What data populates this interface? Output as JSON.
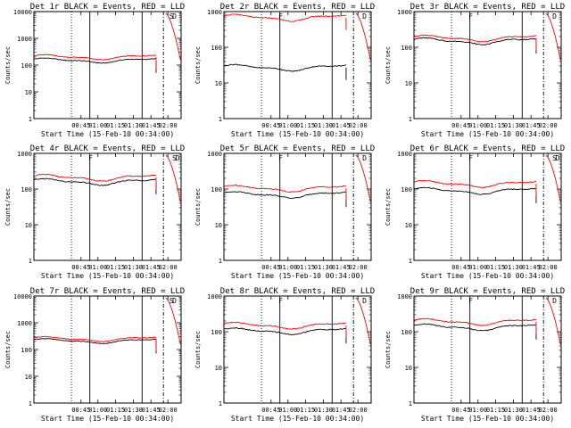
{
  "chart_data": [
    {
      "type": "line",
      "title": "Det 1r BLACK = Events, RED = LLD",
      "xlabel": "Start Time (15-Feb-10 00:34:00)",
      "ylabel": "Counts/sec",
      "yscale": "log",
      "ylim": [
        1,
        10000
      ],
      "x_ticks": [
        "00:45",
        "01:00",
        "01:15",
        "01:30",
        "01:45",
        "02:00"
      ],
      "y_ticks": [
        "1",
        "10",
        "100",
        "1000",
        "10000"
      ],
      "series": [
        {
          "name": "Events",
          "color": "#000000",
          "base": 150
        },
        {
          "name": "LLD",
          "color": "#ff0000",
          "base": 200
        }
      ],
      "flags": [
        "S",
        "D"
      ]
    },
    {
      "type": "line",
      "title": "Det 2r BLACK = Events, RED = LLD",
      "xlabel": "Start Time (15-Feb-10 00:34:00)",
      "ylabel": "Counts/sec",
      "yscale": "log",
      "ylim": [
        1,
        1000
      ],
      "x_ticks": [
        "00:45",
        "01:00",
        "01:15",
        "01:30",
        "01:45",
        "02:00"
      ],
      "y_ticks": [
        "1",
        "10",
        "100",
        "1000"
      ],
      "series": [
        {
          "name": "Events",
          "color": "#000000",
          "base": 27
        },
        {
          "name": "LLD",
          "color": "#ff0000",
          "base": 680
        }
      ],
      "flags": [
        "F",
        "D"
      ]
    },
    {
      "type": "line",
      "title": "Det 3r BLACK = Events, RED = LLD",
      "xlabel": "Start Time (15-Feb-10 00:34:00)",
      "ylabel": "Counts/sec",
      "yscale": "log",
      "ylim": [
        1,
        1000
      ],
      "x_ticks": [
        "00:45",
        "01:00",
        "01:15",
        "01:30",
        "01:45",
        "02:00"
      ],
      "y_ticks": [
        "1",
        "10",
        "100",
        "1000"
      ],
      "series": [
        {
          "name": "Events",
          "color": "#000000",
          "base": 150
        },
        {
          "name": "LLD",
          "color": "#ff0000",
          "base": 180
        }
      ],
      "flags": [
        "F",
        "D"
      ]
    },
    {
      "type": "line",
      "title": "Det 4r BLACK = Events, RED = LLD",
      "xlabel": "Start Time (15-Feb-10 00:34:00)",
      "ylabel": "Counts/sec",
      "yscale": "log",
      "ylim": [
        1,
        1000
      ],
      "x_ticks": [
        "00:45",
        "01:00",
        "01:15",
        "01:30",
        "01:45",
        "02:00"
      ],
      "y_ticks": [
        "1",
        "10",
        "100",
        "1000"
      ],
      "series": [
        {
          "name": "Events",
          "color": "#000000",
          "base": 160
        },
        {
          "name": "LLD",
          "color": "#ff0000",
          "base": 210
        }
      ],
      "flags": [
        "F",
        "S",
        "D"
      ]
    },
    {
      "type": "line",
      "title": "Det 5r BLACK = Events, RED = LLD",
      "xlabel": "Start Time (15-Feb-10 00:34:00)",
      "ylabel": "Counts/sec",
      "yscale": "log",
      "ylim": [
        1,
        1000
      ],
      "x_ticks": [
        "00:45",
        "01:00",
        "01:15",
        "01:30",
        "01:45",
        "02:00"
      ],
      "y_ticks": [
        "1",
        "10",
        "100",
        "1000"
      ],
      "series": [
        {
          "name": "Events",
          "color": "#000000",
          "base": 70
        },
        {
          "name": "LLD",
          "color": "#ff0000",
          "base": 105
        }
      ],
      "flags": [
        "F",
        "D"
      ]
    },
    {
      "type": "line",
      "title": "Det 6r BLACK = Events, RED = LLD",
      "xlabel": "Start Time (15-Feb-10 00:34:00)",
      "ylabel": "Counts/sec",
      "yscale": "log",
      "ylim": [
        1,
        1000
      ],
      "x_ticks": [
        "00:45",
        "01:00",
        "01:15",
        "01:30",
        "01:45",
        "02:00"
      ],
      "y_ticks": [
        "1",
        "10",
        "100",
        "1000"
      ],
      "series": [
        {
          "name": "Events",
          "color": "#000000",
          "base": 90
        },
        {
          "name": "LLD",
          "color": "#ff0000",
          "base": 140
        }
      ],
      "flags": [
        "F",
        "S",
        "D"
      ]
    },
    {
      "type": "line",
      "title": "Det 7r BLACK = Events, RED = LLD",
      "xlabel": "Start Time (15-Feb-10 00:34:00)",
      "ylabel": "Counts/sec",
      "yscale": "log",
      "ylim": [
        1,
        10000
      ],
      "x_ticks": [
        "00:45",
        "01:00",
        "01:15",
        "01:30",
        "01:45",
        "02:00"
      ],
      "y_ticks": [
        "1",
        "10",
        "100",
        "1000",
        "10000"
      ],
      "series": [
        {
          "name": "Events",
          "color": "#000000",
          "base": 210
        },
        {
          "name": "LLD",
          "color": "#ff0000",
          "base": 250
        }
      ],
      "flags": [
        "S",
        "D"
      ]
    },
    {
      "type": "line",
      "title": "Det 8r BLACK = Events, RED = LLD",
      "xlabel": "Start Time (15-Feb-10 00:34:00)",
      "ylabel": "Counts/sec",
      "yscale": "log",
      "ylim": [
        1,
        1000
      ],
      "x_ticks": [
        "00:45",
        "01:00",
        "01:15",
        "01:30",
        "01:45",
        "02:00"
      ],
      "y_ticks": [
        "1",
        "10",
        "100",
        "1000"
      ],
      "series": [
        {
          "name": "Events",
          "color": "#000000",
          "base": 105
        },
        {
          "name": "LLD",
          "color": "#ff0000",
          "base": 150
        }
      ],
      "flags": [
        "F",
        "D"
      ]
    },
    {
      "type": "line",
      "title": "Det 9r BLACK = Events, RED = LLD",
      "xlabel": "Start Time (15-Feb-10 00:34:00)",
      "ylabel": "Counts/sec",
      "yscale": "log",
      "ylim": [
        1,
        1000
      ],
      "x_ticks": [
        "00:45",
        "01:00",
        "01:15",
        "01:30",
        "01:45",
        "02:00"
      ],
      "y_ticks": [
        "1",
        "10",
        "100",
        "1000"
      ],
      "series": [
        {
          "name": "Events",
          "color": "#000000",
          "base": 135
        },
        {
          "name": "LLD",
          "color": "#ff0000",
          "base": 190
        }
      ],
      "flags": [
        "F",
        "D"
      ]
    }
  ]
}
